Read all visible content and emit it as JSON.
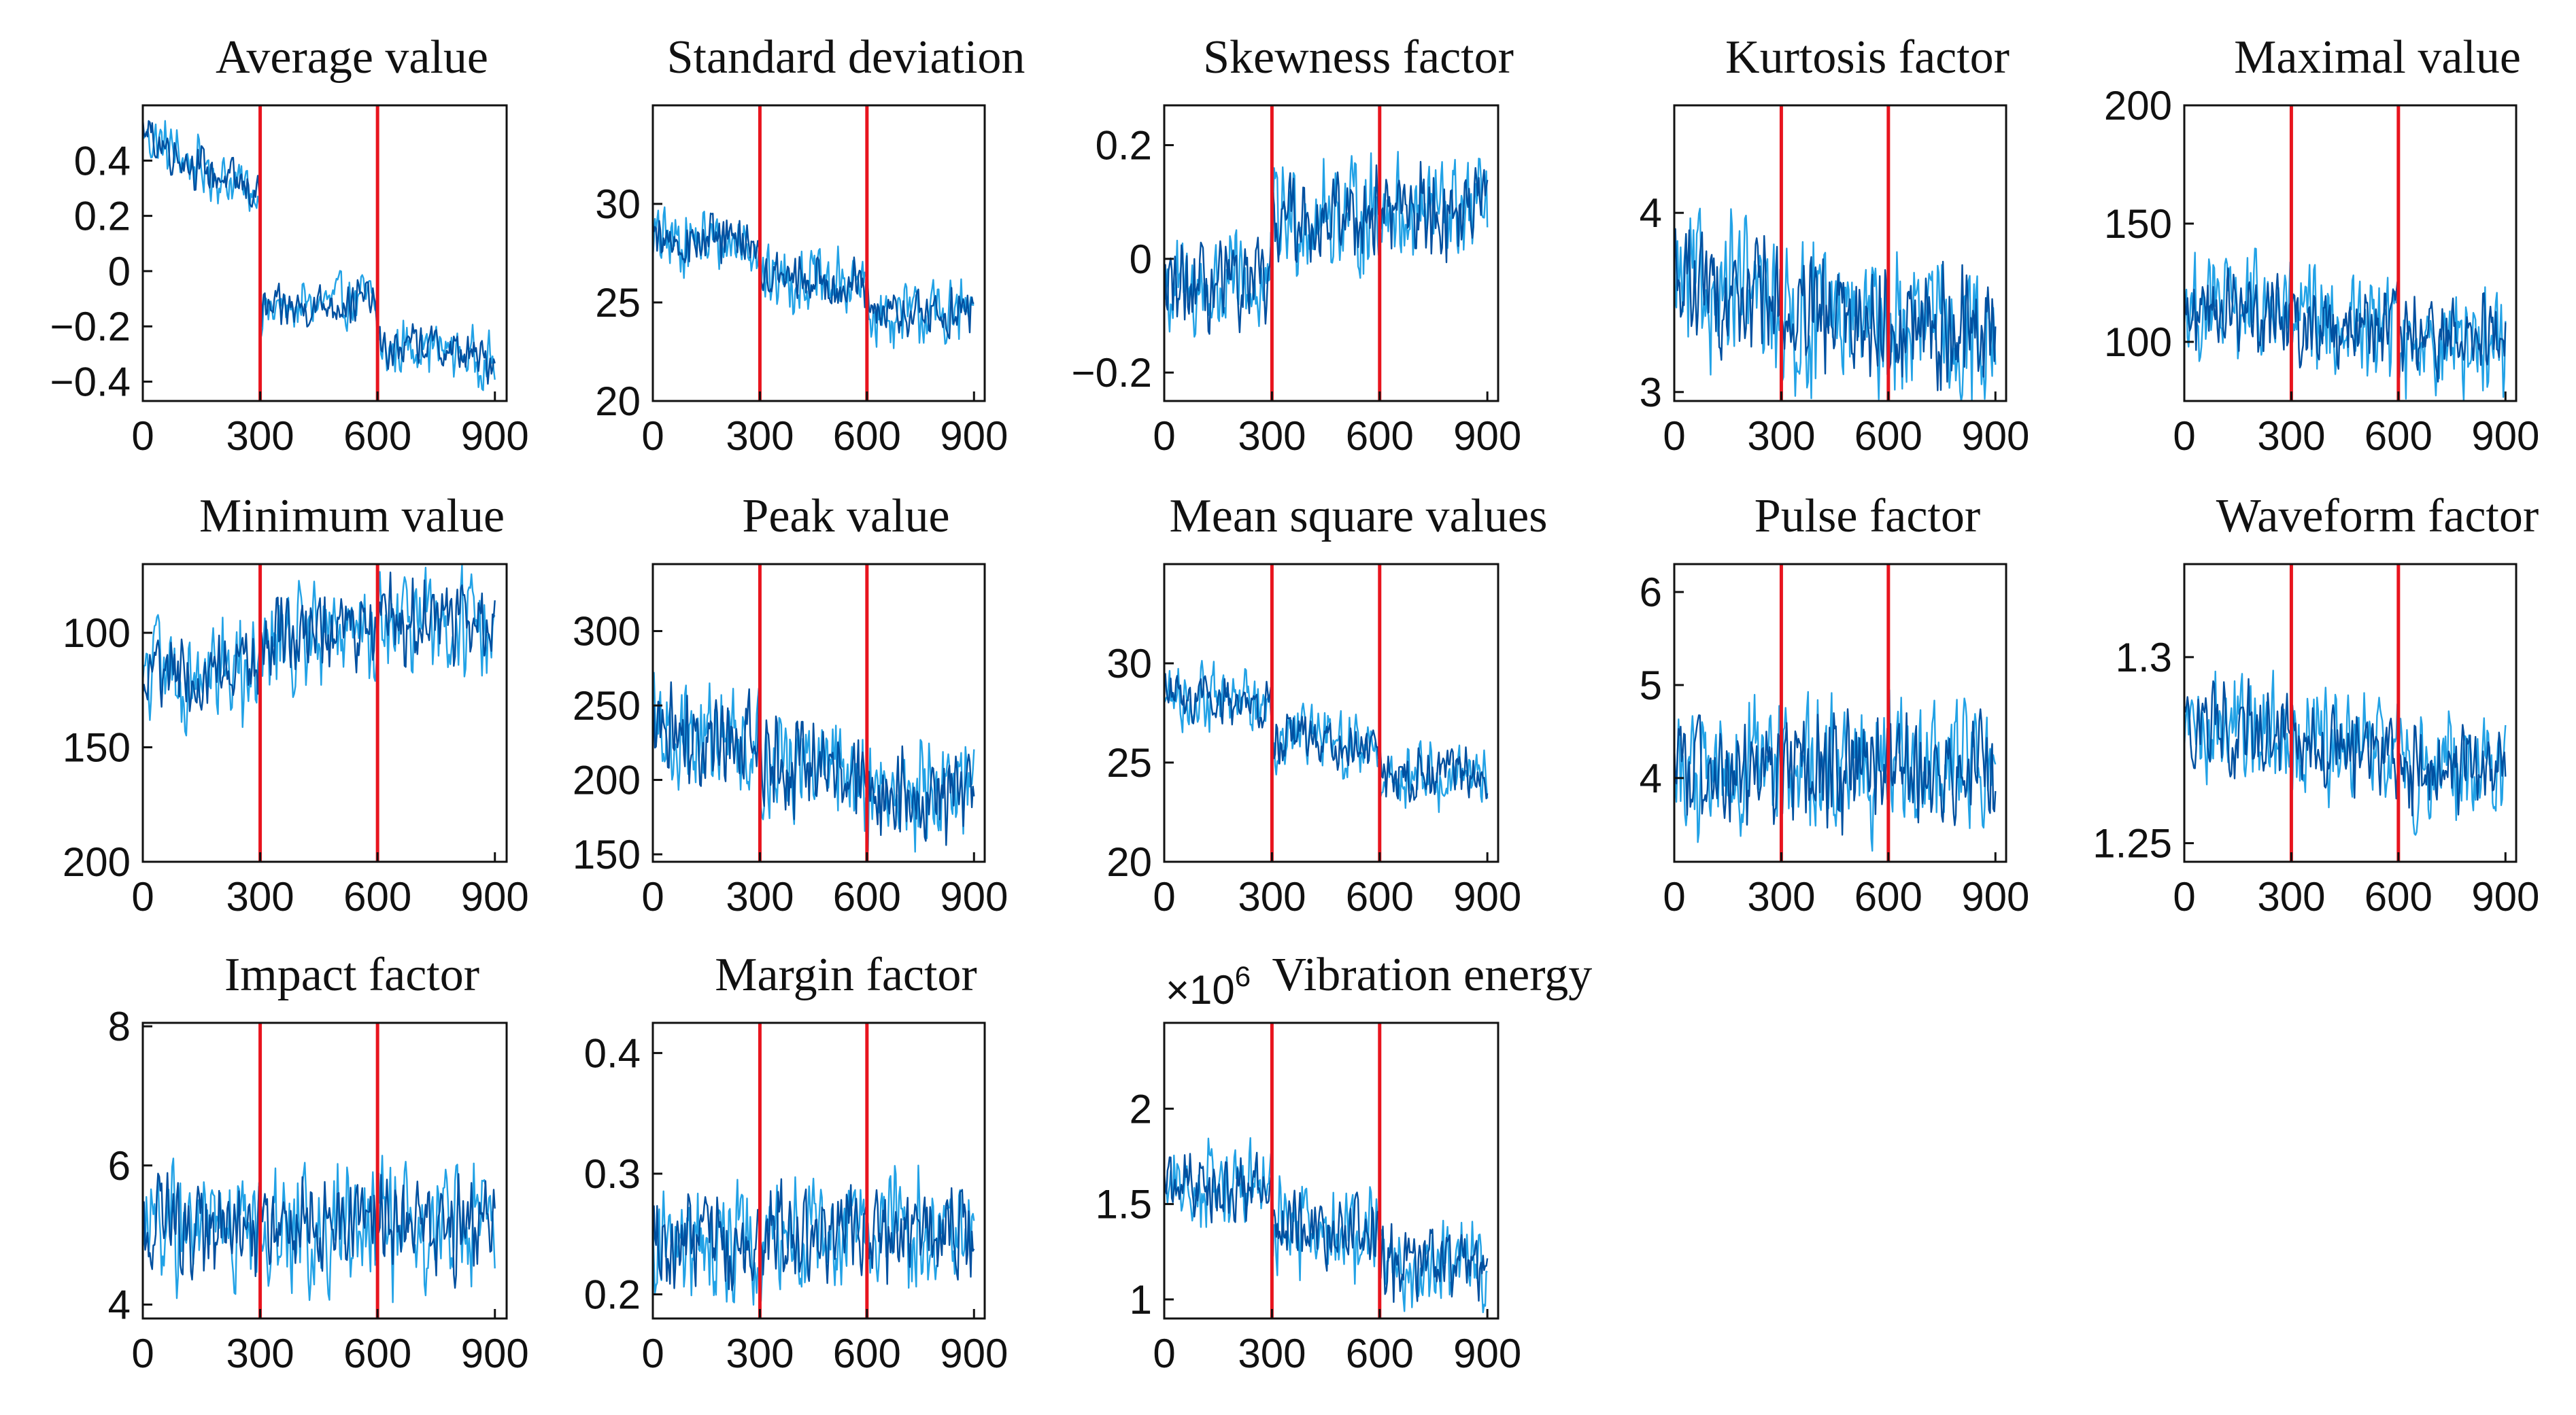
{
  "figure": {
    "colors": {
      "series_dark": "#0050a0",
      "series_light": "#22a2e6",
      "marker": "#e8141e",
      "axis": "#111111"
    }
  },
  "chart_data": [
    {
      "type": "line",
      "title": "Average value",
      "xlim": [
        0,
        930
      ],
      "ylim": [
        -0.47,
        0.6
      ],
      "xticks": [
        0,
        300,
        600,
        900
      ],
      "yticks": [
        0.4,
        0.2,
        0,
        -0.2,
        -0.4
      ],
      "ytick_labels": [
        "0.4",
        "0.2",
        "0",
        "−0.2",
        "−0.4"
      ],
      "vlines": [
        300,
        600
      ],
      "x_end": 900,
      "trend": [
        [
          0,
          0.5
        ],
        [
          150,
          0.37
        ],
        [
          300,
          0.28
        ],
        [
          302,
          -0.15
        ],
        [
          450,
          -0.12
        ],
        [
          590,
          -0.1
        ],
        [
          610,
          -0.3
        ],
        [
          700,
          -0.26
        ],
        [
          900,
          -0.33
        ]
      ],
      "noise": 0.12
    },
    {
      "type": "line",
      "title": "Standard deviation",
      "xlim": [
        0,
        930
      ],
      "ylim": [
        20,
        35
      ],
      "xticks": [
        0,
        300,
        600,
        900
      ],
      "yticks": [
        30,
        25,
        20
      ],
      "ytick_labels": [
        "30",
        "25",
        "20"
      ],
      "vlines": [
        300,
        600
      ],
      "x_end": 900,
      "trend": [
        [
          0,
          28.2
        ],
        [
          300,
          28
        ],
        [
          302,
          26.3
        ],
        [
          600,
          25.8
        ],
        [
          602,
          24.3
        ],
        [
          900,
          24.5
        ]
      ],
      "noise": 2.0
    },
    {
      "type": "line",
      "title": "Skewness factor",
      "xlim": [
        0,
        930
      ],
      "ylim": [
        -0.25,
        0.27
      ],
      "xticks": [
        0,
        300,
        600,
        900
      ],
      "yticks": [
        0.2,
        0,
        -0.2
      ],
      "ytick_labels": [
        "0.2",
        "0",
        "−0.2"
      ],
      "vlines": [
        300,
        600
      ],
      "x_end": 900,
      "trend": [
        [
          0,
          -0.06
        ],
        [
          300,
          -0.05
        ],
        [
          302,
          0.07
        ],
        [
          600,
          0.08
        ],
        [
          602,
          0.09
        ],
        [
          900,
          0.08
        ]
      ],
      "noise": 0.12
    },
    {
      "type": "line",
      "title": "Kurtosis factor",
      "xlim": [
        0,
        930
      ],
      "ylim": [
        2.95,
        4.6
      ],
      "xticks": [
        0,
        300,
        600,
        900
      ],
      "yticks": [
        4,
        3
      ],
      "ytick_labels": [
        "4",
        "3"
      ],
      "vlines": [
        300,
        600
      ],
      "x_end": 900,
      "trend": [
        [
          0,
          3.6
        ],
        [
          300,
          3.5
        ],
        [
          302,
          3.4
        ],
        [
          600,
          3.4
        ],
        [
          602,
          3.35
        ],
        [
          900,
          3.35
        ]
      ],
      "noise": 0.5
    },
    {
      "type": "line",
      "title": "Maximal value",
      "xlim": [
        0,
        930
      ],
      "ylim": [
        75,
        200
      ],
      "xticks": [
        0,
        300,
        600,
        900
      ],
      "yticks": [
        200,
        150,
        100
      ],
      "ytick_labels": [
        "200",
        "150",
        "100"
      ],
      "vlines": [
        300,
        600
      ],
      "x_end": 900,
      "trend": [
        [
          0,
          115
        ],
        [
          300,
          112
        ],
        [
          302,
          108
        ],
        [
          600,
          106
        ],
        [
          602,
          102
        ],
        [
          900,
          100
        ]
      ],
      "noise": 28
    },
    {
      "type": "line",
      "title": "Minimum value",
      "xlim": [
        0,
        930
      ],
      "ylim": [
        200,
        70
      ],
      "xticks": [
        0,
        300,
        600,
        900
      ],
      "yticks": [
        100,
        150,
        200
      ],
      "ytick_labels": [
        "100",
        "150",
        "200"
      ],
      "vlines": [
        300,
        600
      ],
      "x_end": 900,
      "trend": [
        [
          0,
          118
        ],
        [
          300,
          116
        ],
        [
          302,
          102
        ],
        [
          600,
          100
        ],
        [
          602,
          92
        ],
        [
          900,
          95
        ]
      ],
      "noise": 28
    },
    {
      "type": "line",
      "title": "Peak value",
      "xlim": [
        0,
        930
      ],
      "ylim": [
        145,
        345
      ],
      "xticks": [
        0,
        300,
        600,
        900
      ],
      "yticks": [
        300,
        250,
        200,
        150
      ],
      "ytick_labels": [
        "300",
        "250",
        "200",
        "150"
      ],
      "vlines": [
        300,
        600
      ],
      "x_end": 900,
      "trend": [
        [
          0,
          232
        ],
        [
          300,
          228
        ],
        [
          302,
          210
        ],
        [
          600,
          205
        ],
        [
          602,
          190
        ],
        [
          900,
          192
        ]
      ],
      "noise": 45
    },
    {
      "type": "line",
      "title": "Mean square values",
      "xlim": [
        0,
        930
      ],
      "ylim": [
        20,
        35
      ],
      "xticks": [
        0,
        300,
        600,
        900
      ],
      "yticks": [
        30,
        25,
        20
      ],
      "ytick_labels": [
        "30",
        "25",
        "20"
      ],
      "vlines": [
        300,
        600
      ],
      "x_end": 900,
      "trend": [
        [
          0,
          28.3
        ],
        [
          300,
          28
        ],
        [
          302,
          26.3
        ],
        [
          600,
          25.8
        ],
        [
          602,
          24.3
        ],
        [
          900,
          24.5
        ]
      ],
      "noise": 2.0
    },
    {
      "type": "line",
      "title": "Pulse factor",
      "xlim": [
        0,
        930
      ],
      "ylim": [
        3.1,
        6.3
      ],
      "xticks": [
        0,
        300,
        600,
        900
      ],
      "yticks": [
        6,
        5,
        4
      ],
      "ytick_labels": [
        "6",
        "5",
        "4"
      ],
      "vlines": [
        300,
        600
      ],
      "x_end": 900,
      "trend": [
        [
          0,
          4.1
        ],
        [
          300,
          4.05
        ],
        [
          302,
          4.1
        ],
        [
          600,
          4.1
        ],
        [
          602,
          4.1
        ],
        [
          900,
          4.1
        ]
      ],
      "noise": 0.9
    },
    {
      "type": "line",
      "title": "Waveform factor",
      "xlim": [
        0,
        930
      ],
      "ylim": [
        1.245,
        1.325
      ],
      "xticks": [
        0,
        300,
        600,
        900
      ],
      "yticks": [
        1.3,
        1.25
      ],
      "ytick_labels": [
        "1.3",
        "1.25"
      ],
      "vlines": [
        300,
        600
      ],
      "x_end": 900,
      "trend": [
        [
          0,
          1.283
        ],
        [
          300,
          1.28
        ],
        [
          302,
          1.275
        ],
        [
          600,
          1.274
        ],
        [
          602,
          1.27
        ],
        [
          900,
          1.268
        ]
      ],
      "noise": 0.018
    },
    {
      "type": "line",
      "title": "Impact factor",
      "xlim": [
        0,
        930
      ],
      "ylim": [
        3.8,
        8.05
      ],
      "xticks": [
        0,
        300,
        600,
        900
      ],
      "yticks": [
        8,
        6,
        4
      ],
      "ytick_labels": [
        "8",
        "6",
        "4"
      ],
      "vlines": [
        300,
        600
      ],
      "x_end": 900,
      "trend": [
        [
          0,
          5.1
        ],
        [
          300,
          5.0
        ],
        [
          302,
          5.1
        ],
        [
          600,
          5.1
        ],
        [
          602,
          5.1
        ],
        [
          900,
          5.1
        ]
      ],
      "noise": 1.1
    },
    {
      "type": "line",
      "title": "Margin factor",
      "xlim": [
        0,
        930
      ],
      "ylim": [
        0.18,
        0.425
      ],
      "xticks": [
        0,
        300,
        600,
        900
      ],
      "yticks": [
        0.4,
        0.3,
        0.2
      ],
      "ytick_labels": [
        "0.4",
        "0.3",
        "0.2"
      ],
      "vlines": [
        300,
        600
      ],
      "x_end": 900,
      "trend": [
        [
          0,
          0.24
        ],
        [
          300,
          0.24
        ],
        [
          302,
          0.25
        ],
        [
          600,
          0.25
        ],
        [
          602,
          0.25
        ],
        [
          900,
          0.25
        ]
      ],
      "noise": 0.06
    },
    {
      "type": "line",
      "title": "Vibration energy",
      "exponent_label": "×10",
      "exponent_power": "6",
      "xlim": [
        0,
        930
      ],
      "ylim": [
        0.9,
        2.45
      ],
      "xticks": [
        0,
        300,
        600,
        900
      ],
      "yticks": [
        2,
        1.5,
        1
      ],
      "ytick_labels": [
        "2",
        "1.5",
        "1"
      ],
      "vlines": [
        300,
        600
      ],
      "x_end": 900,
      "trend": [
        [
          0,
          1.62
        ],
        [
          300,
          1.58
        ],
        [
          302,
          1.38
        ],
        [
          600,
          1.35
        ],
        [
          602,
          1.2
        ],
        [
          900,
          1.2
        ]
      ],
      "noise": 0.28
    }
  ]
}
